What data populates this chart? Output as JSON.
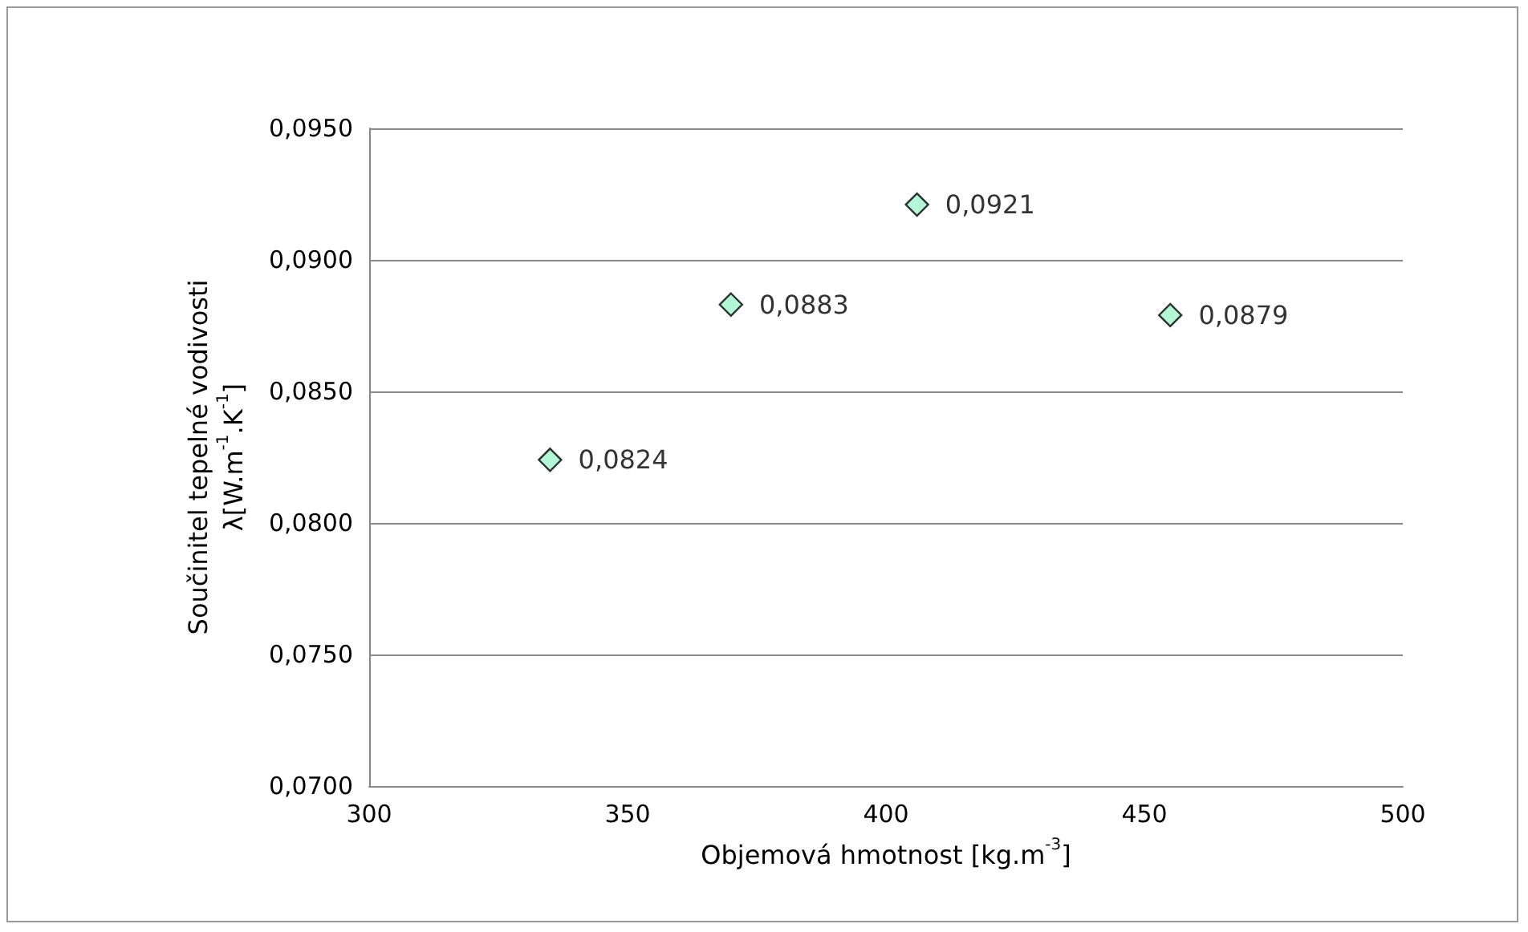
{
  "chart_data": {
    "type": "scatter",
    "xlabel": "Objemová hmotnost [kg.m$^{-3}$]",
    "ylabel": "Součinitel tepelné vodivosti\nλ[W.m$^{-1}$.K$^{-1}$]",
    "x": [
      335,
      370,
      406,
      455
    ],
    "series": [
      {
        "color": "#a0f5cc",
        "values": [
          0.0824,
          0.0883,
          0.0921,
          0.0879
        ],
        "value_labels": [
          "0,0824",
          "0,0883",
          "0,0921",
          "0,0879"
        ]
      }
    ],
    "xlim": [
      300,
      500
    ],
    "xticks": [
      300,
      350,
      400,
      450,
      500
    ],
    "ylim": [
      0.07,
      0.095
    ],
    "yticks": [
      {
        "value": 0.07,
        "label": "0,0700"
      },
      {
        "value": 0.075,
        "label": "0,0750"
      },
      {
        "value": 0.08,
        "label": "0,0800"
      },
      {
        "value": 0.085,
        "label": "0,0850"
      },
      {
        "value": 0.09,
        "label": "0,0900"
      },
      {
        "value": 0.095,
        "label": "0,0950"
      }
    ],
    "grid": "y",
    "marker": "diamond"
  }
}
